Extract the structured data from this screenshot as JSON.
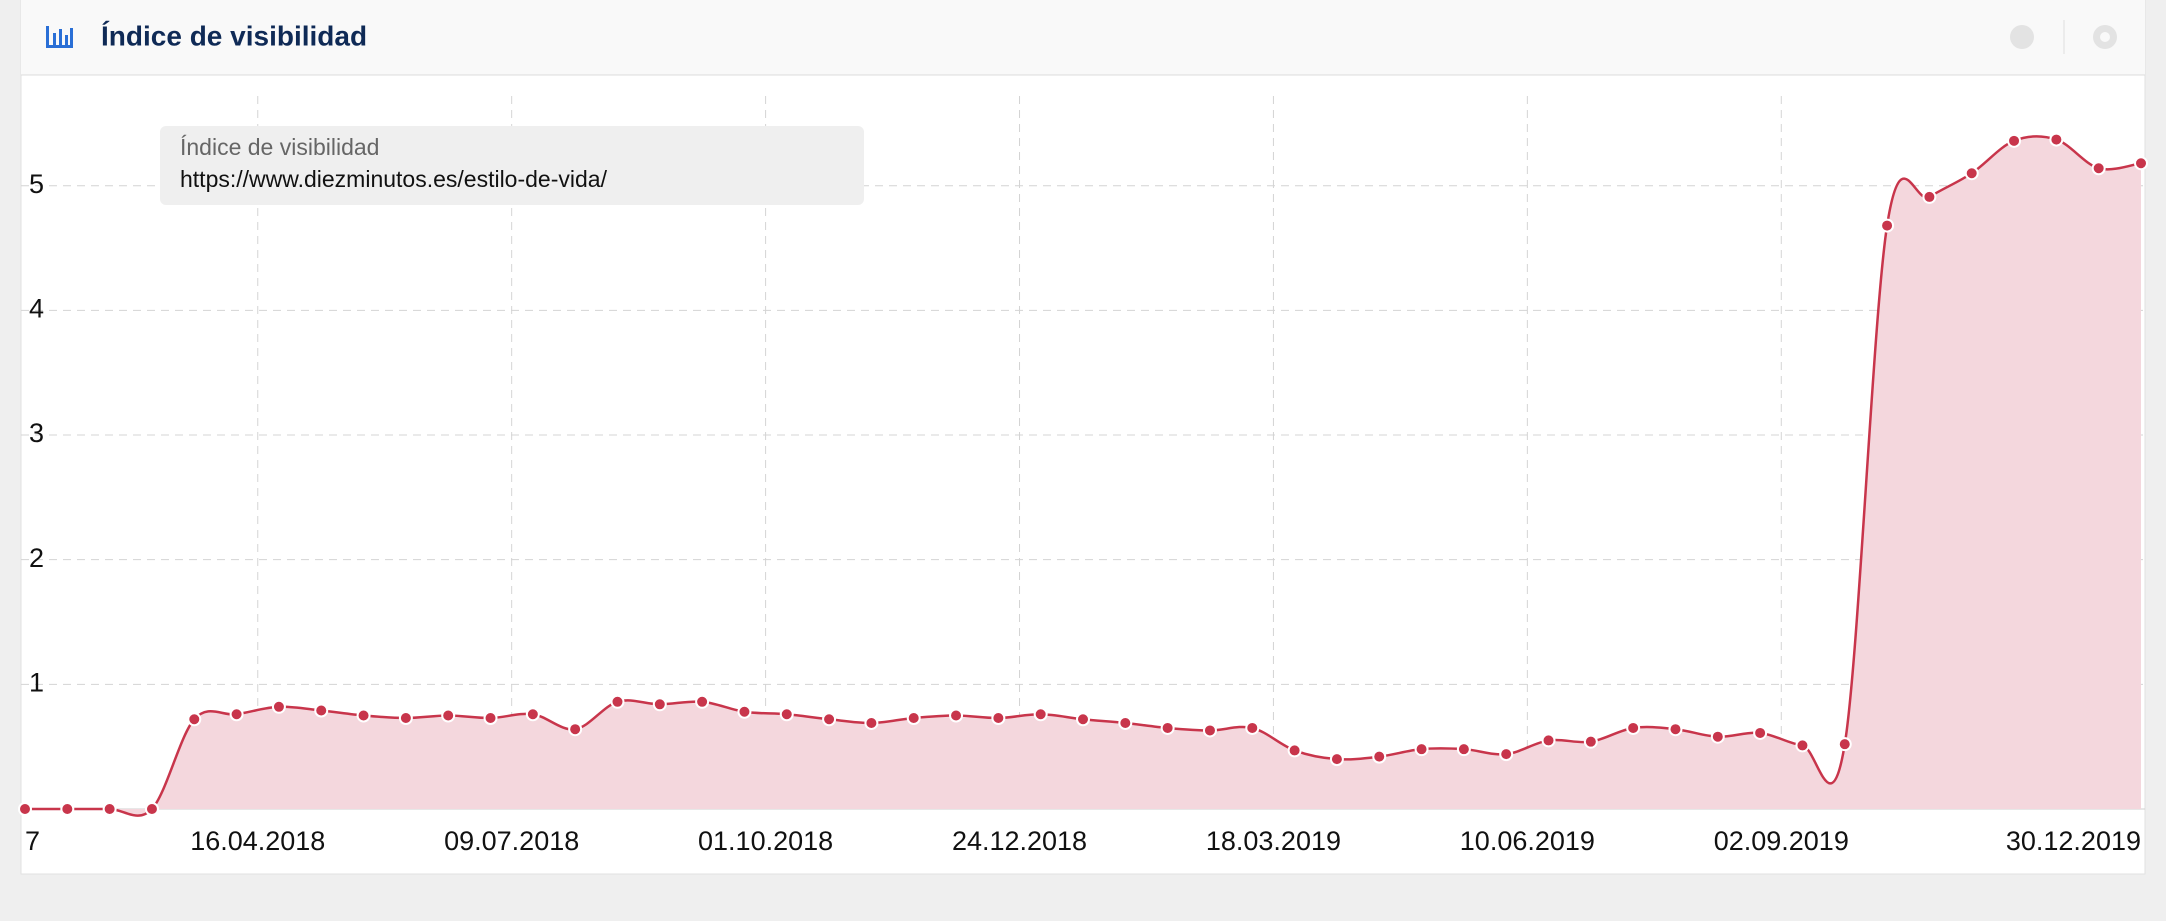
{
  "chart_data": {
    "type": "line",
    "title": "Índice de visibilidad",
    "legend_title": "Índice de visibilidad",
    "x": [
      "29.01.2018",
      "12.02.2018",
      "26.02.2018",
      "12.03.2018",
      "26.03.2018",
      "09.04.2018",
      "23.04.2018",
      "07.05.2018",
      "21.05.2018",
      "04.06.2018",
      "18.06.2018",
      "02.07.2018",
      "16.07.2018",
      "30.07.2018",
      "13.08.2018",
      "27.08.2018",
      "10.09.2018",
      "24.09.2018",
      "08.10.2018",
      "22.10.2018",
      "05.11.2018",
      "19.11.2018",
      "03.12.2018",
      "17.12.2018",
      "31.12.2018",
      "14.01.2019",
      "28.01.2019",
      "11.02.2019",
      "25.02.2019",
      "11.03.2019",
      "25.03.2019",
      "08.04.2019",
      "22.04.2019",
      "06.05.2019",
      "20.05.2019",
      "03.06.2019",
      "17.06.2019",
      "01.07.2019",
      "15.07.2019",
      "29.07.2019",
      "12.08.2019",
      "26.08.2019",
      "09.09.2019",
      "23.09.2019",
      "07.10.2019",
      "21.10.2019",
      "04.11.2019",
      "18.11.2019",
      "02.12.2019",
      "16.12.2019",
      "30.12.2019"
    ],
    "series": [
      {
        "name": "https://www.diezminutos.es/estilo-de-vida/",
        "color": "#c8354b",
        "fill_color": "#f4d7dd",
        "values": [
          0,
          0,
          0,
          0,
          0.72,
          0.76,
          0.82,
          0.79,
          0.75,
          0.73,
          0.75,
          0.73,
          0.76,
          0.64,
          0.86,
          0.84,
          0.86,
          0.78,
          0.76,
          0.72,
          0.69,
          0.73,
          0.75,
          0.73,
          0.76,
          0.72,
          0.69,
          0.65,
          0.63,
          0.65,
          0.47,
          0.4,
          0.42,
          0.48,
          0.48,
          0.44,
          0.55,
          0.54,
          0.65,
          0.64,
          0.58,
          0.61,
          0.51,
          0.52,
          4.68,
          4.91,
          5.1,
          5.36,
          5.37,
          5.14,
          5.18
        ]
      }
    ],
    "xlim": [
      "29.01.2018",
      "30.12.2019"
    ],
    "ylim": [
      0,
      5.88
    ],
    "x_edge_label": "7",
    "xticks": [
      "16.04.2018",
      "09.07.2018",
      "01.10.2018",
      "24.12.2018",
      "18.03.2019",
      "10.06.2019",
      "02.09.2019",
      "30.12.2019"
    ],
    "yticks": [
      1,
      2,
      3,
      4,
      5
    ],
    "grid": true
  }
}
